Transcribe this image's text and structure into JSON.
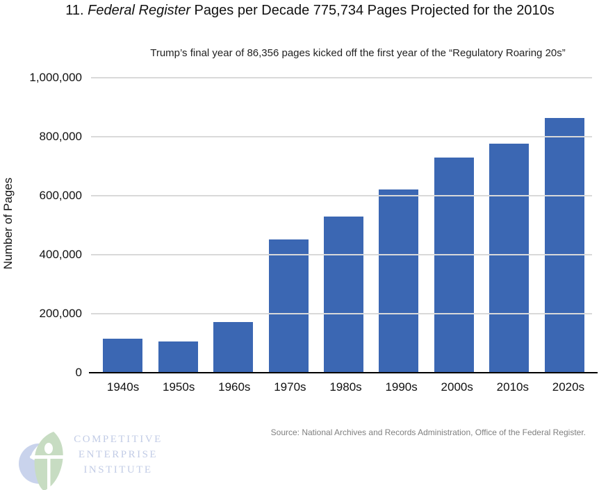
{
  "page": {
    "title_parts": {
      "prefix": "11. ",
      "italic": "Federal Register",
      "suffix": " Pages per Decade 775,734 Pages Projected for the 2010s"
    },
    "subtitle": "Trump’s final year of 86,356 pages kicked off the first year of the “Regulatory Roaring 20s”",
    "source": "Source: National Archives and Records Administration, Office of the Federal Register."
  },
  "logo": {
    "line1": "COMPETITIVE",
    "line2": "ENTERPRISE",
    "line3": "INSTITUTE",
    "mark": "cei-globe-leaf-person-icon",
    "text_color": "#c2cce6",
    "circle_color": "#c9d3ec",
    "leaf_color": "#c7dcc2"
  },
  "chart_data": {
    "type": "bar",
    "title": "11. Federal Register Pages per Decade 775,734 Pages Projected for the 2010s",
    "subtitle": "Trump’s final year of 86,356 pages kicked off the first year of the “Regulatory Roaring 20s”",
    "categories": [
      "1940s",
      "1950s",
      "1960s",
      "1970s",
      "1980s",
      "1990s",
      "2000s",
      "2010s",
      "2020s"
    ],
    "values": [
      115000,
      107000,
      172000,
      451000,
      529000,
      622000,
      730000,
      775734,
      863560
    ],
    "xlabel": "",
    "ylabel": "Number of Pages",
    "ylim": [
      0,
      1000000
    ],
    "ytick_values": [
      0,
      200000,
      400000,
      600000,
      800000,
      1000000
    ],
    "ytick_labels": [
      "0",
      "200,000",
      "400,000",
      "600,000",
      "800,000",
      "1,000,000"
    ],
    "grid": true,
    "legend": false,
    "bar_color": "#3b67b3",
    "gridline_color": "#d9d9d9",
    "axis_color": "#000000",
    "source": "Source: National Archives and Records Administration, Office of the Federal Register."
  }
}
